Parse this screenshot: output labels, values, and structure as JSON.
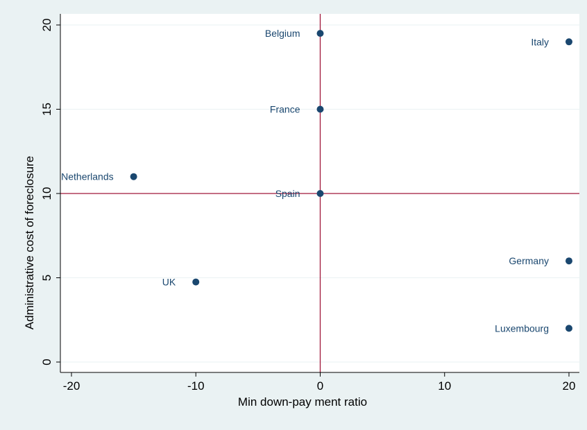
{
  "chart_data": {
    "type": "scatter",
    "xlabel": "Min down-pay ment ratio",
    "ylabel": "Administrative cost of foreclosure",
    "xlim": [
      -20,
      20
    ],
    "ylim": [
      0,
      20
    ],
    "xticks": [
      -20,
      -10,
      0,
      10,
      20
    ],
    "yticks": [
      0,
      5,
      10,
      15,
      20
    ],
    "xtick_labels": [
      "-20",
      "-10",
      "0",
      "10",
      "20"
    ],
    "ytick_labels": [
      "0",
      "5",
      "10",
      "15",
      "20"
    ],
    "grid": true,
    "reference_lines": {
      "x": 0,
      "y": 10
    },
    "points": [
      {
        "label": "Belgium",
        "x": 0,
        "y": 19.5,
        "label_side": "left"
      },
      {
        "label": "Italy",
        "x": 20,
        "y": 19,
        "label_side": "left"
      },
      {
        "label": "France",
        "x": 0,
        "y": 15,
        "label_side": "left"
      },
      {
        "label": "Netherlands",
        "x": -15,
        "y": 11,
        "label_side": "left"
      },
      {
        "label": "Spain",
        "x": 0,
        "y": 10,
        "label_side": "left"
      },
      {
        "label": "Germany",
        "x": 20,
        "y": 6,
        "label_side": "left"
      },
      {
        "label": "UK",
        "x": -10,
        "y": 4.75,
        "label_side": "left"
      },
      {
        "label": "Luxembourg",
        "x": 20,
        "y": 2,
        "label_side": "left"
      }
    ],
    "colors": {
      "background": "#eaf2f3",
      "plot_background": "#ffffff",
      "marker": "#1a476f",
      "label": "#1a476f",
      "reference_line": "#a0183a",
      "grid": "#eaf2f3",
      "axis": "#000000"
    }
  }
}
